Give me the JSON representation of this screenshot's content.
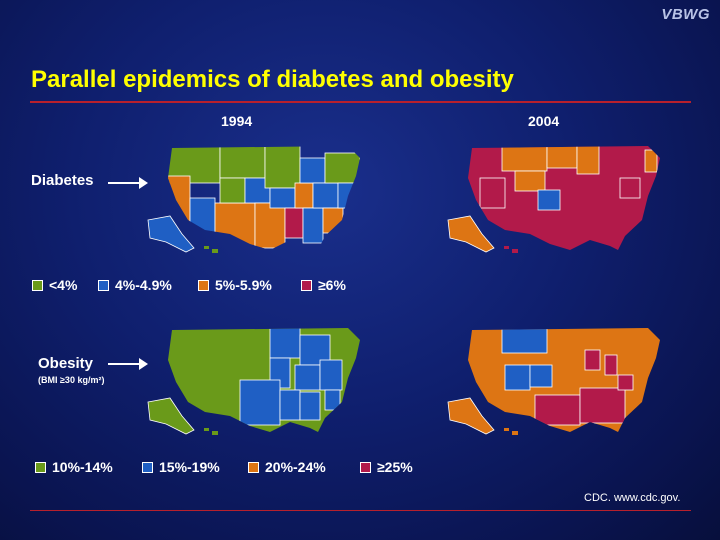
{
  "brand": "VBWG",
  "title": "Parallel epidemics of diabetes and obesity",
  "years": [
    "1994",
    "2004"
  ],
  "rows": {
    "diabetes": {
      "label": "Diabetes"
    },
    "obesity": {
      "label": "Obesity",
      "sublabel": "(BMI ≥30 kg/m²)"
    }
  },
  "colors": {
    "green": "#6a9a1a",
    "blue": "#1f5fc4",
    "orange": "#dd7514",
    "red": "#b21a4a",
    "background": "#0f1f6e",
    "title": "#ffff00",
    "rule": "#b8202c"
  },
  "legends": {
    "diabetes": [
      {
        "label": "<4%",
        "color": "#6a9a1a"
      },
      {
        "label": "4%-4.9%",
        "color": "#1f5fc4"
      },
      {
        "label": "5%-5.9%",
        "color": "#dd7514"
      },
      {
        "label": "≥6%",
        "color": "#b21a4a"
      }
    ],
    "obesity": [
      {
        "label": "10%-14%",
        "color": "#6a9a1a"
      },
      {
        "label": "15%-19%",
        "color": "#1f5fc4"
      },
      {
        "label": "20%-24%",
        "color": "#dd7514"
      },
      {
        "label": "≥25%",
        "color": "#b21a4a"
      }
    ]
  },
  "source": "CDC. www.cdc.gov."
}
